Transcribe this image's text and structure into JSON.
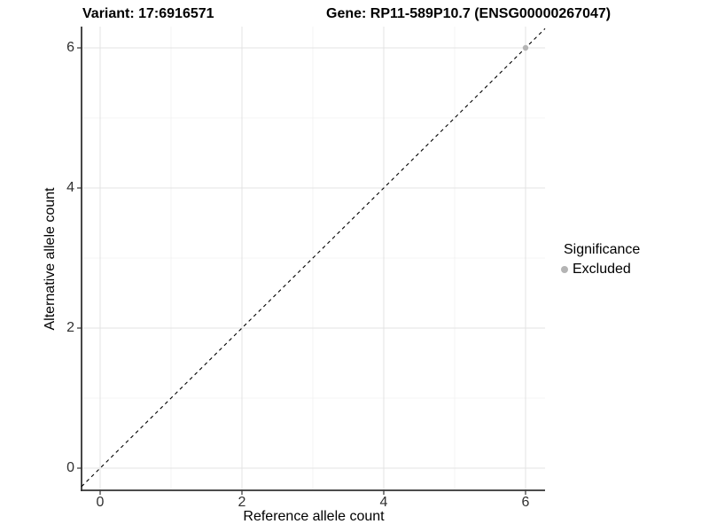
{
  "header": {
    "variant_title": "Variant: 17:6916571",
    "gene_title": "Gene: RP11-589P10.7 (ENSG00000267047)"
  },
  "chart_data": {
    "type": "scatter",
    "title_left": "Variant: 17:6916571",
    "title_right": "Gene: RP11-589P10.7 (ENSG00000267047)",
    "xlabel": "Reference allele count",
    "ylabel": "Alternative allele count",
    "xlim": [
      -0.26,
      6.28
    ],
    "ylim": [
      -0.32,
      6.3
    ],
    "x_ticks": [
      0,
      2,
      4,
      6
    ],
    "y_ticks": [
      0,
      2,
      4,
      6
    ],
    "minor_x": [
      1,
      3,
      5
    ],
    "minor_y": [
      1,
      3,
      5
    ],
    "grid": "major+minor",
    "identity_line": {
      "slope": 1,
      "intercept": 0,
      "style": "dashed",
      "color": "#000000"
    },
    "series": [
      {
        "name": "Excluded",
        "color": "#b4b4b4",
        "points": [
          {
            "x": 6,
            "y": 6
          }
        ]
      }
    ],
    "legend": {
      "title": "Significance",
      "position": "right",
      "items": [
        {
          "label": "Excluded",
          "color": "#b4b4b4"
        }
      ]
    }
  },
  "colors": {
    "background": "#ffffff",
    "grid_major": "#e3e3e3",
    "grid_minor": "#f1f1f1",
    "axis_line": "#333333",
    "tick_mark": "#333333",
    "tick_text": "#303030",
    "point": "#b4b4b4",
    "identity_line": "#000000"
  }
}
